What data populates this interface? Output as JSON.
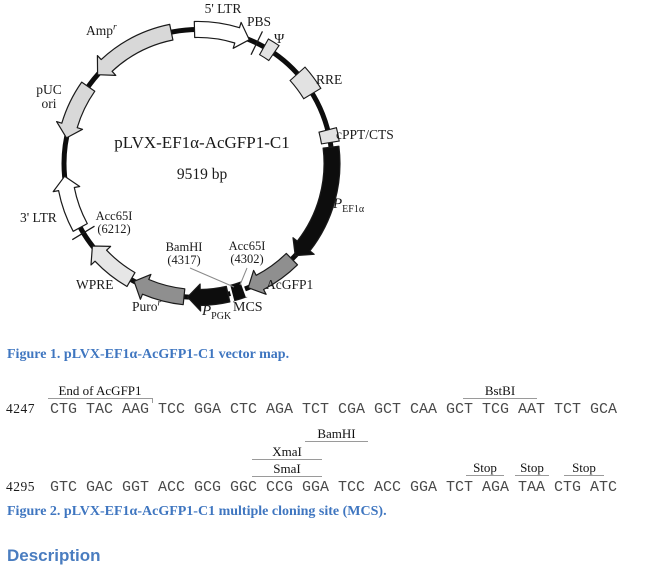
{
  "figure1": {
    "plasmid": {
      "title": "pLVX-EF1α-AcGFP1-C1",
      "size": "9519 bp",
      "labels": {
        "ltr5": "5' LTR",
        "pbs": "PBS",
        "psi": "Ψ",
        "rre": "RRE",
        "cppt": "cPPT/CTS",
        "pef1a_base": "P",
        "pef1a_sub": "EF1α",
        "acgfp1": "AcGFP1",
        "acc65i_4302_name": "Acc65I",
        "acc65i_4302_pos": "(4302)",
        "bamhi_name": "BamHI",
        "bamhi_pos": "(4317)",
        "mcs": "MCS",
        "ppgk_base": "P",
        "ppgk_sub": "PGK",
        "puro_base": "Puro",
        "puro_sup": "r",
        "wpre": "WPRE",
        "acc65i_6212_name": "Acc65I",
        "acc65i_6212_pos": "(6212)",
        "ltr3": "3' LTR",
        "puc_line1": "pUC",
        "puc_line2": "ori",
        "amp_base": "Amp",
        "amp_sup": "r"
      }
    },
    "caption": "Figure 1. pLVX-EF1α-AcGFP1-C1 vector map."
  },
  "figure2": {
    "rows": [
      {
        "pos": "4247",
        "codons": [
          "CTG",
          "TAC",
          "AAG",
          "TCC",
          "GGA",
          "CTC",
          "AGA",
          "TCT",
          "CGA",
          "GCT",
          "CAA",
          "GCT",
          "TCG",
          "AAT",
          "TCT",
          "GCA"
        ]
      },
      {
        "pos": "4295",
        "codons": [
          "GTC",
          "GAC",
          "GGT",
          "ACC",
          "GCG",
          "GGC",
          "CCG",
          "GGA",
          "TCC",
          "ACC",
          "GGA",
          "TCT",
          "AGA",
          "TAA",
          "CTG",
          "ATC"
        ]
      }
    ],
    "annotations": {
      "end_of_acgfp1": "End of AcGFP1",
      "bstbi": "BstBI",
      "bamhi": "BamHI",
      "xmai": "XmaI",
      "smai": "SmaI",
      "stop": "Stop"
    },
    "caption": "Figure 2. pLVX-EF1α-AcGFP1-C1 multiple cloning site (MCS)."
  },
  "description_heading": "Description",
  "colors": {
    "caption_blue": "#3f76c0",
    "backbone_black": "#0d0d0d",
    "feature_light_gray": "#d8d8d8",
    "feature_medium_gray": "#8f8f8f",
    "feature_pale_gray": "#e6e6e6",
    "sequence_gray": "#4a4a4a",
    "overline_gray": "#9a9a9a"
  }
}
